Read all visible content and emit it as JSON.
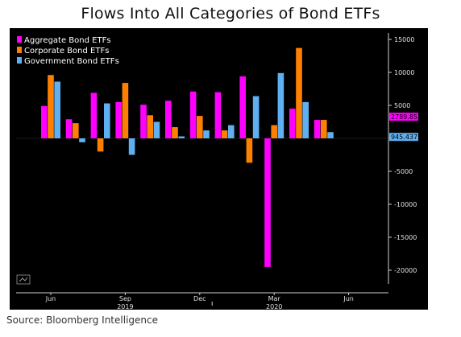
{
  "page": {
    "title": "Flows Into All Categories of Bond ETFs",
    "source": "Source: Bloomberg Intelligence"
  },
  "chart_data": {
    "type": "bar",
    "categories": [
      "2019-06",
      "2019-07",
      "2019-08",
      "2019-09",
      "2019-10",
      "2019-11",
      "2019-12",
      "2020-01",
      "2020-02",
      "2020-03",
      "2020-04",
      "2020-05"
    ],
    "series": [
      {
        "name": "Aggregate Bond ETFs",
        "color": "#ff00ff",
        "values": [
          4900,
          2900,
          6900,
          5500,
          5100,
          5700,
          7100,
          7000,
          9400,
          -19500,
          4500,
          2789.8535
        ]
      },
      {
        "name": "Corporate Bond ETFs",
        "color": "#ff8000",
        "values": [
          9600,
          2300,
          -2000,
          8400,
          3500,
          1700,
          3400,
          1200,
          -3700,
          2000,
          13700,
          2800
        ]
      },
      {
        "name": "Government Bond ETFs",
        "color": "#5fb0f2",
        "values": [
          8600,
          -600,
          5300,
          -2500,
          2500,
          300,
          1200,
          2000,
          6400,
          9900,
          5500,
          945.4377
        ]
      }
    ],
    "ylim": [
      -20000,
      15000
    ],
    "y_ticks": [
      15000,
      10000,
      5000,
      0,
      -5000,
      -10000,
      -15000,
      -20000
    ],
    "y_tick_labels": [
      "15000",
      "10000",
      "5000",
      "0",
      "-5000",
      "-10000",
      "-15000",
      "-20000"
    ],
    "x_ticks": [
      {
        "label": "Jun",
        "at": "2019-06"
      },
      {
        "label": "Sep",
        "at": "2019-09"
      },
      {
        "label": "Dec",
        "at": "2019-12"
      },
      {
        "label": "Mar",
        "at": "2020-03"
      },
      {
        "label": "Jun",
        "at": "2020-06"
      }
    ],
    "year_labels": [
      {
        "label": "2019",
        "at": "2019-09"
      },
      {
        "label": "2020",
        "at": "2020-03"
      }
    ],
    "last_value_labels": [
      {
        "text": "2789.8535",
        "color": "#ff00ff",
        "value": 2789.8535
      },
      {
        "text": "945.4377",
        "color": "#5fb0f2",
        "value": 945.4377
      }
    ],
    "legend_position": "top-left",
    "grid": false,
    "background": "#000000"
  }
}
